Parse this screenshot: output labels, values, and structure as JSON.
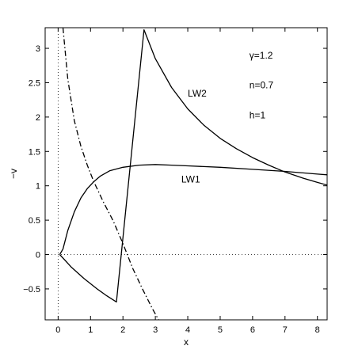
{
  "chart_data": {
    "type": "line",
    "xlabel": "x",
    "ylabel": "−v",
    "xlim": [
      -0.4,
      8.3
    ],
    "ylim": [
      -0.95,
      3.3
    ],
    "xticks": [
      0,
      1,
      2,
      3,
      4,
      5,
      6,
      7,
      8
    ],
    "yticks": [
      -0.5,
      0,
      0.5,
      1,
      1.5,
      2,
      2.5,
      3
    ],
    "ytick_labels": [
      "−0.5",
      "0",
      "0.5",
      "1",
      "1.5",
      "2",
      "2.5",
      "3"
    ],
    "grid": false,
    "reference_lines": [
      {
        "orientation": "horizontal",
        "value": 0,
        "style": "dotted"
      },
      {
        "orientation": "vertical",
        "value": 0,
        "style": "dotted"
      }
    ],
    "series": [
      {
        "name": "LW1",
        "style": "solid",
        "x": [
          0.05,
          0.15,
          0.3,
          0.5,
          0.7,
          0.9,
          1.1,
          1.3,
          1.6,
          2.0,
          2.5,
          3.0,
          3.5,
          4.0,
          5.0,
          6.0,
          7.0,
          8.0,
          8.3
        ],
        "y": [
          0.0,
          0.08,
          0.35,
          0.62,
          0.82,
          0.96,
          1.06,
          1.14,
          1.22,
          1.27,
          1.3,
          1.31,
          1.3,
          1.29,
          1.27,
          1.24,
          1.21,
          1.17,
          1.16
        ]
      },
      {
        "name": "LW2",
        "style": "solid",
        "x": [
          0.05,
          0.4,
          0.8,
          1.2,
          1.5,
          1.8,
          2.65,
          3.0,
          3.5,
          4.0,
          4.5,
          5.0,
          5.5,
          6.0,
          6.5,
          7.0,
          7.5,
          8.0,
          8.3
        ],
        "y": [
          0.0,
          -0.18,
          -0.35,
          -0.5,
          -0.6,
          -0.69,
          3.27,
          2.85,
          2.43,
          2.12,
          1.88,
          1.69,
          1.54,
          1.41,
          1.3,
          1.2,
          1.12,
          1.05,
          1.01
        ]
      },
      {
        "style": "dash-dot",
        "x": [
          0.15,
          0.3,
          0.5,
          0.7,
          0.9,
          1.1,
          1.4,
          1.7,
          2.0,
          2.3,
          2.6,
          2.9,
          3.1
        ],
        "y": [
          3.3,
          2.55,
          1.95,
          1.58,
          1.3,
          1.06,
          0.76,
          0.49,
          0.16,
          -0.2,
          -0.5,
          -0.78,
          -0.95
        ]
      }
    ],
    "annotations": [
      {
        "text": "γ=1.2",
        "x": 5.9,
        "y": 2.85
      },
      {
        "text": "n=0.7",
        "x": 5.9,
        "y": 2.42
      },
      {
        "text": "h=1",
        "x": 5.9,
        "y": 1.98
      },
      {
        "text": "LW2",
        "x": 4.0,
        "y": 2.3
      },
      {
        "text": "LW1",
        "x": 3.8,
        "y": 1.05
      }
    ]
  }
}
